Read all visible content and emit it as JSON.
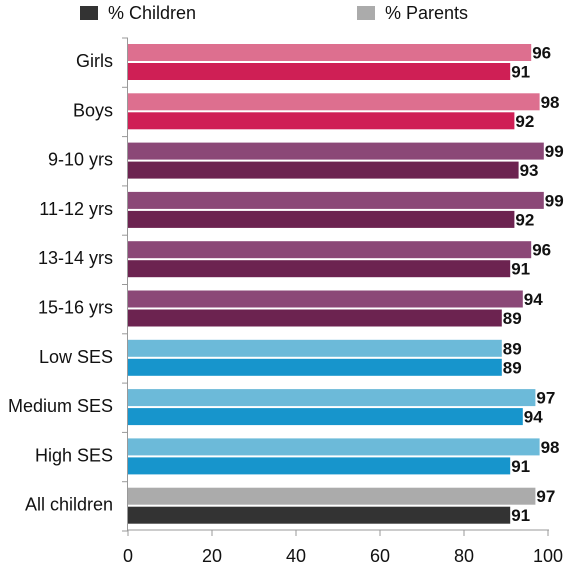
{
  "chart_data": {
    "type": "bar",
    "orientation": "horizontal",
    "categories": [
      "Girls",
      "Boys",
      "9-10 yrs",
      "11-12 yrs",
      "13-14 yrs",
      "15-16 yrs",
      "Low  SES",
      "Medium SES",
      "High SES",
      "All children"
    ],
    "series": [
      {
        "name": "% Parents",
        "values": [
          96,
          98,
          99,
          99,
          96,
          94,
          89,
          97,
          98,
          97
        ]
      },
      {
        "name": "% Children",
        "values": [
          91,
          92,
          93,
          92,
          91,
          89,
          89,
          94,
          91,
          91
        ]
      }
    ],
    "xlim": [
      0,
      100
    ],
    "xticks": [
      0,
      20,
      40,
      60,
      80,
      100
    ],
    "grid": false,
    "legend_position": "top",
    "legend_order": [
      "% Children",
      "% Parents"
    ],
    "colors": {
      "gender": {
        "parents": "#dd6f8f",
        "children": "#cf1f55"
      },
      "age": {
        "parents": "#8b4877",
        "children": "#6c2350"
      },
      "ses": {
        "parents": "#6cbad9",
        "children": "#1795cc"
      },
      "all": {
        "parents": "#ababab",
        "children": "#333333"
      },
      "legend_children": "#333333",
      "legend_parents": "#ababab"
    },
    "category_groups": [
      "gender",
      "gender",
      "age",
      "age",
      "age",
      "age",
      "ses",
      "ses",
      "ses",
      "all"
    ]
  }
}
